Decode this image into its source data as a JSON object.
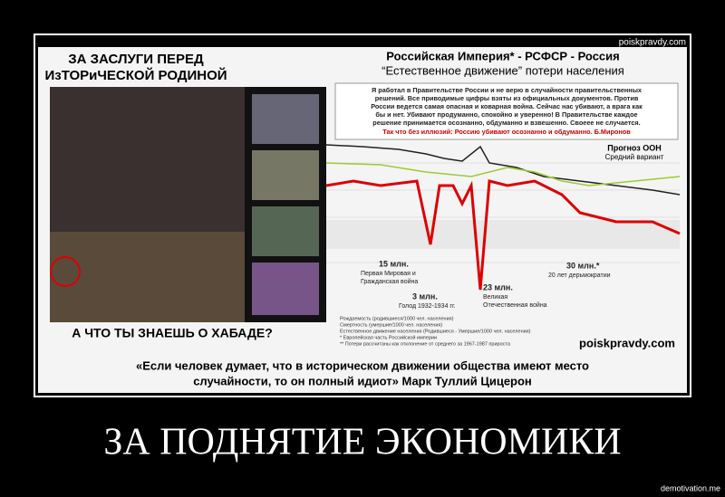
{
  "header": {
    "site": "poiskpravdy.com"
  },
  "left_panel": {
    "title_lines": [
      "ЗА ЗАСЛУГИ ПЕРЕД",
      "ИзТОРиЧЕСКОЙ РОДИНОЙ"
    ],
    "question": "А ЧТО ТЫ ЗНАЕШЬ О ХАБАДЕ?"
  },
  "chart_panel": {
    "title": "Российская Империя* - РСФСР - Россия",
    "subtitle": "“Естественное движение” потери населения",
    "quote_lines": [
      "Я работал в Правительстве России и не верю в случайности правительственных",
      "решений. Все приводимые цифры взяты из официальных документов. Против",
      "России ведется самая опасная и коварная война. Сейчас нас убивают, а врага как",
      "бы и нет. Убивают продуманно, спокойно и уверенно! В Правительстве каждое",
      "решение принимается осознанно, обдуманно и взвешенно. Своеее не случается.",
      "Так что без иллюзий: Россию убивают осознанно и обдуманно. Б.Миронов"
    ],
    "forecast": "Прогноз ООН",
    "forecast_sub": "Средний вариант",
    "annotations": [
      {
        "amount": "15 млн.",
        "lines": [
          "Первая Мировая и",
          "Гражданская война"
        ]
      },
      {
        "amount": "3 млн.",
        "lines": [
          "Голод 1932-1934 гг."
        ]
      },
      {
        "amount": "23 млн.",
        "lines": [
          "Великая",
          "Отечественная война"
        ]
      },
      {
        "amount": "30 млн.*",
        "lines": [
          "20 лет дерьмократии"
        ]
      }
    ],
    "legend": [
      "Рождаемость (родившиеся/1000 чел. населения)",
      "Смертность (умершие/1000 чел. населения)",
      "Естественное движение населения (Родившиеся - Умершие/1000 чел. населения)",
      "* Европейская часть Российской империи",
      "** Потери рассчитаны как отклонение от среднего за 1967-1987 прироста"
    ],
    "watermark": "poiskpravdy.com"
  },
  "quote": [
    "«Если человек думает, что в историческом движении общества имеют место",
    "случайности, то он полный идиот» Марк Туллий Цицерон"
  ],
  "caption": "ЗА ПОДНЯТИЕ ЭКОНОМИКИ",
  "footer": "demotivation.me"
}
